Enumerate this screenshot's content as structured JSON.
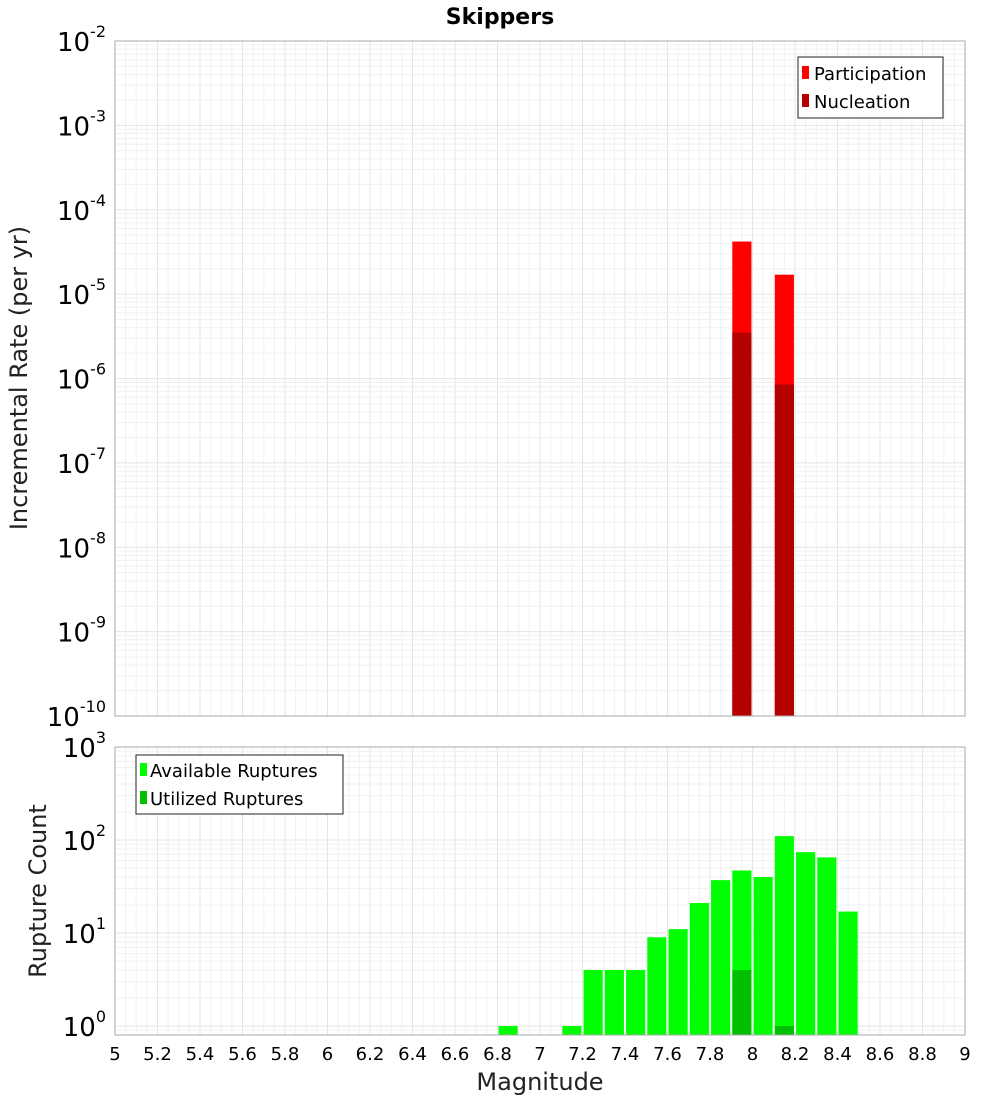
{
  "chart_data": [
    {
      "type": "bar",
      "title": "Skippers",
      "ylabel": "Incremental Rate (per yr)",
      "xlabel": "",
      "xlim": [
        5,
        9
      ],
      "y_scale": "log",
      "ylim": [
        1e-10,
        0.01
      ],
      "y_ticks": [
        {
          "base": "10",
          "exp": "-10",
          "value": 1e-10
        },
        {
          "base": "10",
          "exp": "-9",
          "value": 1e-09
        },
        {
          "base": "10",
          "exp": "-8",
          "value": 1e-08
        },
        {
          "base": "10",
          "exp": "-7",
          "value": 1e-07
        },
        {
          "base": "10",
          "exp": "-6",
          "value": 1e-06
        },
        {
          "base": "10",
          "exp": "-5",
          "value": 1e-05
        },
        {
          "base": "10",
          "exp": "-4",
          "value": 0.0001
        },
        {
          "base": "10",
          "exp": "-3",
          "value": 0.001
        },
        {
          "base": "10",
          "exp": "-2",
          "value": 0.01
        }
      ],
      "bar_width": 0.09,
      "grid": true,
      "legend_position": "top-right",
      "series": [
        {
          "name": "Participation",
          "color": "#ff0000",
          "x": [
            7.95,
            8.15
          ],
          "values": [
            4.2e-05,
            1.7e-05
          ]
        },
        {
          "name": "Nucleation",
          "color": "#b40000",
          "x": [
            7.95,
            8.15
          ],
          "values": [
            3.5e-06,
            8.5e-07
          ]
        }
      ]
    },
    {
      "type": "bar",
      "title": "",
      "ylabel": "Rupture Count",
      "xlabel": "Magnitude",
      "xlim": [
        5,
        9
      ],
      "x_ticks": [
        "5",
        "5.2",
        "5.4",
        "5.6",
        "5.8",
        "6",
        "6.2",
        "6.4",
        "6.6",
        "6.8",
        "7",
        "7.2",
        "7.4",
        "7.6",
        "7.8",
        "8",
        "8.2",
        "8.4",
        "8.6",
        "8.8",
        "9"
      ],
      "y_scale": "log",
      "ylim": [
        0.8,
        1000
      ],
      "y_ticks": [
        {
          "base": "10",
          "exp": "0",
          "value": 1
        },
        {
          "base": "10",
          "exp": "1",
          "value": 10
        },
        {
          "base": "10",
          "exp": "2",
          "value": 100
        },
        {
          "base": "10",
          "exp": "3",
          "value": 1000
        }
      ],
      "bar_width": 0.09,
      "grid": true,
      "legend_position": "top-left",
      "series": [
        {
          "name": "Available Ruptures",
          "color": "#00ff00",
          "x": [
            6.85,
            7.15,
            7.25,
            7.35,
            7.45,
            7.55,
            7.65,
            7.75,
            7.85,
            7.95,
            8.05,
            8.15,
            8.25,
            8.35,
            8.45
          ],
          "values": [
            1,
            1,
            4,
            4,
            4,
            9,
            11,
            21,
            37,
            47,
            40,
            110,
            74,
            65,
            17
          ]
        },
        {
          "name": "Utilized Ruptures",
          "color": "#00c000",
          "x": [
            7.95,
            8.15
          ],
          "values": [
            4,
            1
          ]
        }
      ]
    }
  ]
}
